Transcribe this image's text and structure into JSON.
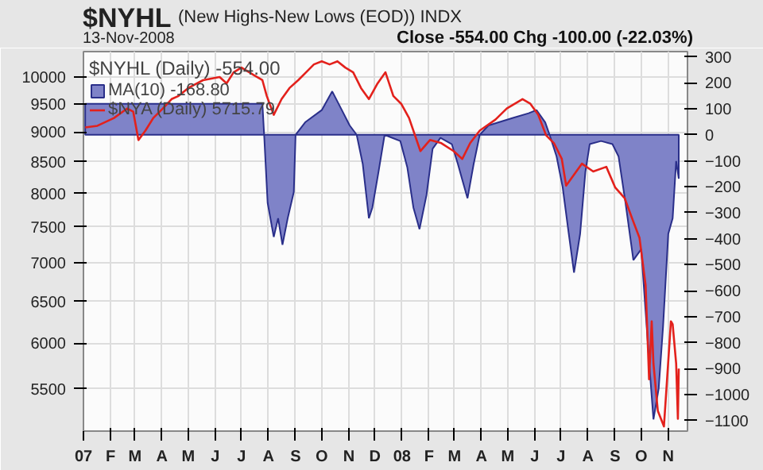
{
  "chart_data": {
    "type": "area",
    "title": "$NYHL",
    "subtitle": "(New Highs-New Lows (EOD))  INDX",
    "annotations": [
      "13-Nov-2008",
      "Close -554.00  Chg -100.00 (-22.03%)"
    ],
    "legend_title": "$NYHL (Daily) -554.00",
    "series": [
      {
        "name": "MA(10) -168.80",
        "axis": "y2",
        "color": "#7f83c8",
        "x": [
          "2007-01-03",
          "2007-07-25",
          "2007-07-27",
          "2007-07-31",
          "2007-08-07",
          "2007-08-12",
          "2007-08-17",
          "2007-08-23",
          "2007-08-30",
          "2007-09-01",
          "2007-09-12",
          "2007-10-01",
          "2007-10-13",
          "2007-10-24",
          "2007-11-02",
          "2007-11-10",
          "2007-11-17",
          "2007-11-24",
          "2007-11-28",
          "2007-12-05",
          "2007-12-12",
          "2007-12-21",
          "2007-12-30",
          "2008-01-07",
          "2008-01-14",
          "2008-01-21",
          "2008-01-29",
          "2008-02-05",
          "2008-02-14",
          "2008-02-27",
          "2008-03-05",
          "2008-03-10",
          "2008-03-16",
          "2008-03-23",
          "2008-03-30",
          "2008-04-09",
          "2008-05-07",
          "2008-05-25",
          "2008-06-03",
          "2008-06-13",
          "2008-06-18",
          "2008-06-26",
          "2008-07-03",
          "2008-07-10",
          "2008-07-16",
          "2008-07-23",
          "2008-07-29",
          "2008-08-03",
          "2008-08-16",
          "2008-08-29",
          "2008-09-05",
          "2008-09-13",
          "2008-09-22",
          "2008-10-01",
          "2008-10-06",
          "2008-10-11",
          "2008-10-15",
          "2008-10-21",
          "2008-10-26",
          "2008-11-01",
          "2008-11-06",
          "2008-11-10",
          "2008-11-13"
        ],
        "values": [
          119,
          119,
          0,
          -262,
          -393,
          -321,
          -423,
          -321,
          -220,
          0,
          48,
          95,
          167,
          95,
          36,
          0,
          -113,
          -321,
          -280,
          -143,
          0,
          -12,
          -24,
          -125,
          -280,
          -363,
          -232,
          -54,
          -12,
          -36,
          -113,
          -173,
          -244,
          -113,
          0,
          36,
          65,
          83,
          95,
          48,
          0,
          -83,
          -202,
          -381,
          -530,
          -381,
          -143,
          -36,
          -24,
          -36,
          -83,
          -262,
          -482,
          -440,
          -679,
          -917,
          -1095,
          -976,
          -738,
          -381,
          -321,
          -101,
          -169
        ]
      },
      {
        "name": "$NYA (Daily) 5715.79",
        "type": "line",
        "color": "#e3211c",
        "x": [
          "2007-01-03",
          "2007-01-17",
          "2007-02-05",
          "2007-02-20",
          "2007-02-27",
          "2007-03-05",
          "2007-03-13",
          "2007-03-22",
          "2007-04-02",
          "2007-04-12",
          "2007-04-20",
          "2007-05-01",
          "2007-05-18",
          "2007-06-06",
          "2007-06-14",
          "2007-06-22",
          "2007-07-01",
          "2007-07-16",
          "2007-07-25",
          "2007-07-30",
          "2007-08-07",
          "2007-08-16",
          "2007-08-25",
          "2007-09-04",
          "2007-09-13",
          "2007-09-22",
          "2007-10-01",
          "2007-10-10",
          "2007-10-19",
          "2007-10-28",
          "2007-11-06",
          "2007-11-15",
          "2007-11-24",
          "2007-12-04",
          "2007-12-13",
          "2007-12-22",
          "2007-12-31",
          "2008-01-09",
          "2008-01-22",
          "2008-02-02",
          "2008-02-15",
          "2008-02-29",
          "2008-03-10",
          "2008-03-19",
          "2008-03-30",
          "2008-04-17",
          "2008-04-30",
          "2008-05-18",
          "2008-05-27",
          "2008-06-05",
          "2008-06-14",
          "2008-06-23",
          "2008-07-02",
          "2008-07-07",
          "2008-07-16",
          "2008-07-25",
          "2008-08-07",
          "2008-08-22",
          "2008-09-01",
          "2008-09-12",
          "2008-09-22",
          "2008-09-29",
          "2008-10-06",
          "2008-10-09",
          "2008-10-10",
          "2008-10-13",
          "2008-10-15",
          "2008-10-20",
          "2008-10-27",
          "2008-10-30",
          "2008-11-04",
          "2008-11-06",
          "2008-11-10",
          "2008-11-12",
          "2008-11-13"
        ],
        "values": [
          9079,
          9107,
          9245,
          9414,
          9358,
          8862,
          9024,
          9245,
          9414,
          9586,
          9644,
          9791,
          9940,
          10000,
          9880,
          10091,
          10183,
          10030,
          9940,
          9644,
          9301,
          9586,
          9791,
          9940,
          10091,
          10245,
          10307,
          10245,
          10307,
          10183,
          10091,
          9791,
          9586,
          9880,
          10091,
          9644,
          9500,
          9245,
          8676,
          8862,
          8809,
          8676,
          8546,
          8809,
          9024,
          9217,
          9414,
          9586,
          9500,
          9301,
          8943,
          8809,
          8546,
          8119,
          8292,
          8469,
          8342,
          8418,
          8095,
          7927,
          7575,
          7347,
          6709,
          5862,
          5600,
          6258,
          5771,
          5271,
          5116,
          5514,
          6258,
          6223,
          5771,
          5191,
          5716
        ]
      }
    ],
    "xlim": [
      "2007-01-01",
      "2008-11-23"
    ],
    "xticks": [
      {
        "value": "2007-01-01",
        "label": "07"
      },
      {
        "value": "2007-02-01",
        "label": "F"
      },
      {
        "value": "2007-03-01",
        "label": "M"
      },
      {
        "value": "2007-04-01",
        "label": "A"
      },
      {
        "value": "2007-05-01",
        "label": "M"
      },
      {
        "value": "2007-06-01",
        "label": "J"
      },
      {
        "value": "2007-07-01",
        "label": "J"
      },
      {
        "value": "2007-08-01",
        "label": "A"
      },
      {
        "value": "2007-09-01",
        "label": "S"
      },
      {
        "value": "2007-10-01",
        "label": "O"
      },
      {
        "value": "2007-11-01",
        "label": "N"
      },
      {
        "value": "2007-12-01",
        "label": "D"
      },
      {
        "value": "2008-01-01",
        "label": "08"
      },
      {
        "value": "2008-02-01",
        "label": "F"
      },
      {
        "value": "2008-03-01",
        "label": "M"
      },
      {
        "value": "2008-04-01",
        "label": "A"
      },
      {
        "value": "2008-05-01",
        "label": "M"
      },
      {
        "value": "2008-06-01",
        "label": "J"
      },
      {
        "value": "2008-07-01",
        "label": "J"
      },
      {
        "value": "2008-08-01",
        "label": "A"
      },
      {
        "value": "2008-09-01",
        "label": "S"
      },
      {
        "value": "2008-10-01",
        "label": "O"
      },
      {
        "value": "2008-11-01",
        "label": "N"
      }
    ],
    "ylim": [
      5070,
      10500
    ],
    "yticks": [
      5500,
      6000,
      6500,
      7000,
      7500,
      8000,
      8500,
      9000,
      9500,
      10000
    ],
    "y2lim": [
      -1140,
      320
    ],
    "y2ticks": [
      300,
      200,
      100,
      0,
      -100,
      -200,
      -300,
      -400,
      -500,
      -600,
      -700,
      -800,
      -900,
      -1000,
      -1100
    ],
    "log": "y",
    "grid": true,
    "legend": "top left"
  }
}
